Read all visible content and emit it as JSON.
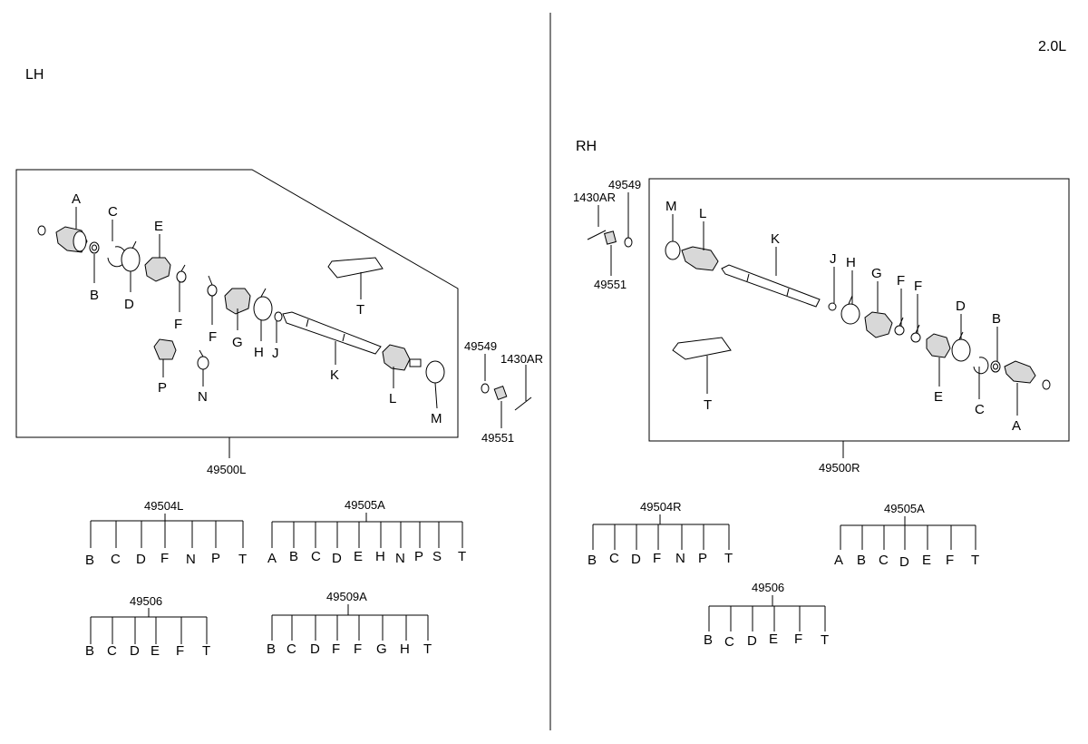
{
  "engine": "2.0L",
  "lh": {
    "side": "LH",
    "assembly_pn": "49500L",
    "callouts": {
      "A": "A",
      "B": "B",
      "C": "C",
      "D": "D",
      "E": "E",
      "F1": "F",
      "F2": "F",
      "G": "G",
      "H": "H",
      "J": "J",
      "K": "K",
      "L": "L",
      "M": "M",
      "N": "N",
      "P": "P",
      "T": "T"
    },
    "hardware": {
      "washer": "49549",
      "bolt": "1430AR",
      "nut": "49551"
    },
    "kits": [
      {
        "pn": "49504L",
        "items": [
          "B",
          "C",
          "D",
          "F",
          "N",
          "P",
          "T"
        ]
      },
      {
        "pn": "49505A",
        "items": [
          "A",
          "B",
          "C",
          "D",
          "E",
          "H",
          "N",
          "P",
          "S",
          "T"
        ]
      },
      {
        "pn": "49506",
        "items": [
          "B",
          "C",
          "D",
          "E",
          "F",
          "T"
        ]
      },
      {
        "pn": "49509A",
        "items": [
          "B",
          "C",
          "D",
          "F",
          "F",
          "G",
          "H",
          "T"
        ]
      }
    ]
  },
  "rh": {
    "side": "RH",
    "assembly_pn": "49500R",
    "callouts": {
      "A": "A",
      "B": "B",
      "C": "C",
      "D": "D",
      "E": "E",
      "F1": "F",
      "F2": "F",
      "G": "G",
      "H": "H",
      "J": "J",
      "K": "K",
      "L": "L",
      "M": "M",
      "T": "T"
    },
    "hardware": {
      "washer": "49549",
      "bolt": "1430AR",
      "nut": "49551"
    },
    "kits": [
      {
        "pn": "49504R",
        "items": [
          "B",
          "C",
          "D",
          "F",
          "N",
          "P",
          "T"
        ]
      },
      {
        "pn": "49505A",
        "items": [
          "A",
          "B",
          "C",
          "D",
          "E",
          "F",
          "T"
        ]
      },
      {
        "pn": "49506",
        "items": [
          "B",
          "C",
          "D",
          "E",
          "F",
          "T"
        ]
      }
    ]
  }
}
